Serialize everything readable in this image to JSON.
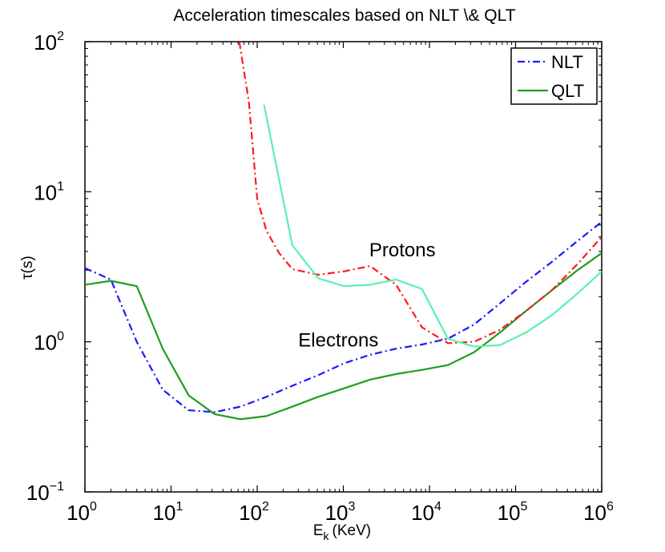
{
  "chart_data": {
    "type": "line",
    "title": "Acceleration timescales based on NLT \\& QLT",
    "xlabel_main": "E",
    "xlabel_sub": "k",
    "xlabel_unit": "(KeV)",
    "ylabel": "τ(s)",
    "xscale": "log",
    "yscale": "log",
    "xlim": [
      1,
      1000000
    ],
    "ylim": [
      0.1,
      100
    ],
    "x_ticks": [
      {
        "value": 1,
        "base": "10",
        "exp": "0"
      },
      {
        "value": 10,
        "base": "10",
        "exp": "1"
      },
      {
        "value": 100,
        "base": "10",
        "exp": "2"
      },
      {
        "value": 1000,
        "base": "10",
        "exp": "3"
      },
      {
        "value": 10000,
        "base": "10",
        "exp": "4"
      },
      {
        "value": 100000,
        "base": "10",
        "exp": "5"
      },
      {
        "value": 1000000,
        "base": "10",
        "exp": "6"
      }
    ],
    "y_ticks": [
      {
        "value": 0.1,
        "base": "10",
        "exp": "−1"
      },
      {
        "value": 1,
        "base": "10",
        "exp": "0"
      },
      {
        "value": 10,
        "base": "10",
        "exp": "1"
      },
      {
        "value": 100,
        "base": "10",
        "exp": "2"
      }
    ],
    "legend": {
      "position": "top-right",
      "entries": [
        {
          "label": "NLT",
          "style": "dashdot",
          "color": "#1a1aff"
        },
        {
          "label": "QLT",
          "style": "solid",
          "color": "#1f9e1f"
        }
      ]
    },
    "annotations": [
      {
        "text": "Protons",
        "x": 2000,
        "y": 3.7
      },
      {
        "text": "Electrons",
        "x": 300,
        "y": 0.93
      }
    ],
    "series": [
      {
        "name": "Electrons NLT",
        "method": "NLT",
        "particle": "electrons",
        "color": "#1a1aff",
        "style": "dashdot",
        "x": [
          1,
          2,
          4,
          8,
          16,
          32,
          64,
          128,
          256,
          512,
          1024,
          2048,
          4096,
          8192,
          16384,
          32768,
          65536,
          131072,
          262144,
          524288,
          1000000
        ],
        "y": [
          3.1,
          2.6,
          1.0,
          0.48,
          0.35,
          0.34,
          0.37,
          0.43,
          0.51,
          0.6,
          0.72,
          0.82,
          0.9,
          0.96,
          1.05,
          1.3,
          1.8,
          2.5,
          3.4,
          4.7,
          6.3
        ]
      },
      {
        "name": "Electrons QLT",
        "method": "QLT",
        "particle": "electrons",
        "color": "#1f9e1f",
        "style": "solid",
        "x": [
          1,
          2,
          4,
          8,
          16,
          32,
          64,
          128,
          256,
          512,
          1024,
          2048,
          4096,
          8192,
          16384,
          32768,
          65536,
          131072,
          262144,
          524288,
          1000000
        ],
        "y": [
          2.4,
          2.55,
          2.35,
          0.9,
          0.44,
          0.33,
          0.305,
          0.32,
          0.37,
          0.43,
          0.49,
          0.56,
          0.61,
          0.65,
          0.7,
          0.85,
          1.15,
          1.6,
          2.2,
          3.0,
          3.9
        ]
      },
      {
        "name": "Protons NLT",
        "method": "NLT",
        "particle": "protons",
        "color": "#ff1a1a",
        "style": "dashdot",
        "x": [
          62,
          80,
          100,
          128,
          180,
          256,
          512,
          1024,
          2048,
          4096,
          8192,
          16384,
          32768,
          65536,
          131072,
          262144,
          524288,
          1000000
        ],
        "y": [
          100,
          40,
          9,
          5.5,
          3.9,
          3.05,
          2.8,
          2.95,
          3.2,
          2.4,
          1.25,
          0.98,
          1.0,
          1.2,
          1.6,
          2.2,
          3.3,
          5.0
        ]
      },
      {
        "name": "Protons QLT",
        "method": "QLT",
        "particle": "protons",
        "color": "#5cf0b0",
        "style": "solid",
        "x": [
          120,
          256,
          512,
          1024,
          2048,
          4096,
          8192,
          16384,
          32768,
          65536,
          131072,
          262144,
          524288,
          1000000
        ],
        "y": [
          38,
          4.4,
          2.65,
          2.35,
          2.4,
          2.6,
          2.25,
          1.05,
          0.93,
          0.95,
          1.15,
          1.5,
          2.1,
          2.95
        ]
      }
    ]
  }
}
